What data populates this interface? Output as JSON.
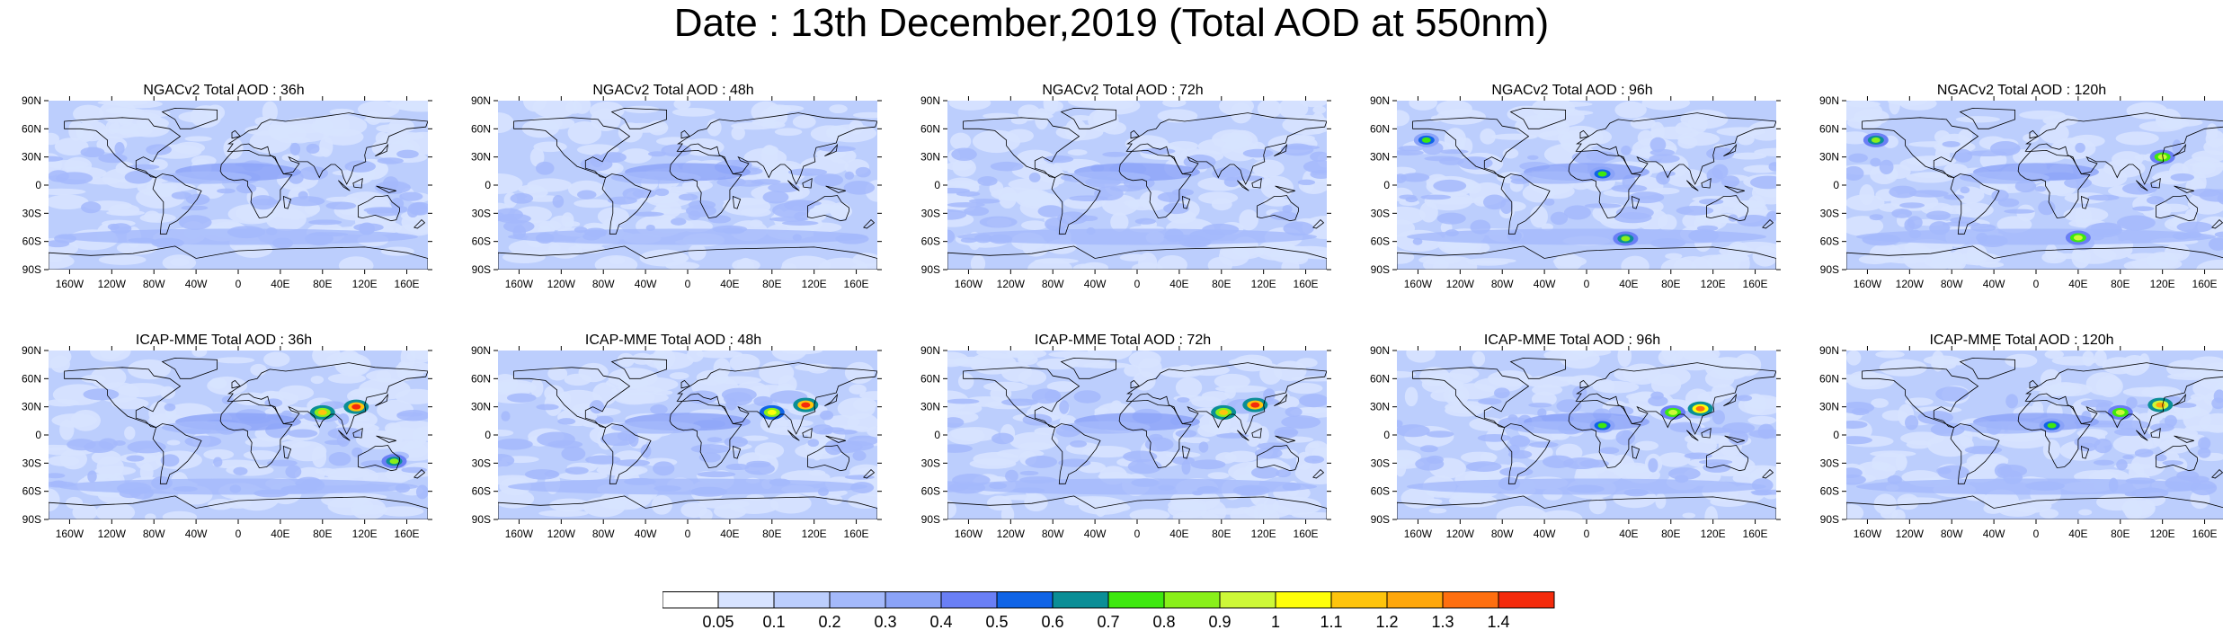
{
  "title": "Date : 13th December,2019 (Total AOD at 550nm)",
  "lat_ticks": [
    "90N",
    "60N",
    "30N",
    "0",
    "30S",
    "60S",
    "90S"
  ],
  "lon_ticks": [
    "160W",
    "120W",
    "80W",
    "40W",
    "0",
    "40E",
    "80E",
    "120E",
    "160E"
  ],
  "panels": [
    {
      "title": "NGACv2 Total AOD : 36h",
      "model": "NGACv2",
      "lead": "36h",
      "hotspots": []
    },
    {
      "title": "NGACv2 Total AOD : 48h",
      "model": "NGACv2",
      "lead": "48h",
      "hotspots": []
    },
    {
      "title": "NGACv2 Total AOD : 72h",
      "model": "NGACv2",
      "lead": "72h",
      "hotspots": []
    },
    {
      "title": "NGACv2 Total AOD : 96h",
      "model": "NGACv2",
      "lead": "96h",
      "hotspots": [
        {
          "lon": 37,
          "lat": -57,
          "aod": 0.8
        },
        {
          "lon": -152,
          "lat": 48,
          "aod": 0.7
        },
        {
          "lon": 15,
          "lat": 12,
          "aod": 0.7
        }
      ]
    },
    {
      "title": "NGACv2 Total AOD : 120h",
      "model": "NGACv2",
      "lead": "120h",
      "hotspots": [
        {
          "lon": 40,
          "lat": -56,
          "aod": 0.9
        },
        {
          "lon": -152,
          "lat": 48,
          "aod": 0.8
        },
        {
          "lon": 120,
          "lat": 30,
          "aod": 0.9
        }
      ]
    },
    {
      "title": "ICAP-MME Total AOD : 36h",
      "model": "ICAP-MME",
      "lead": "36h",
      "hotspots": [
        {
          "lon": 112,
          "lat": 30,
          "aod": 1.4
        },
        {
          "lon": 80,
          "lat": 24,
          "aod": 1.1
        },
        {
          "lon": 148,
          "lat": -28,
          "aod": 0.8
        }
      ]
    },
    {
      "title": "ICAP-MME Total AOD : 48h",
      "model": "ICAP-MME",
      "lead": "48h",
      "hotspots": [
        {
          "lon": 112,
          "lat": 32,
          "aod": 1.4
        },
        {
          "lon": 80,
          "lat": 24,
          "aod": 1.0
        }
      ]
    },
    {
      "title": "ICAP-MME Total AOD : 72h",
      "model": "ICAP-MME",
      "lead": "72h",
      "hotspots": [
        {
          "lon": 112,
          "lat": 32,
          "aod": 1.4
        },
        {
          "lon": 82,
          "lat": 24,
          "aod": 1.1
        }
      ]
    },
    {
      "title": "ICAP-MME Total AOD : 96h",
      "model": "ICAP-MME",
      "lead": "96h",
      "hotspots": [
        {
          "lon": 108,
          "lat": 28,
          "aod": 1.3
        },
        {
          "lon": 82,
          "lat": 24,
          "aod": 0.9
        },
        {
          "lon": 15,
          "lat": 10,
          "aod": 0.7
        }
      ]
    },
    {
      "title": "ICAP-MME Total AOD : 120h",
      "model": "ICAP-MME",
      "lead": "120h",
      "hotspots": [
        {
          "lon": 118,
          "lat": 32,
          "aod": 1.2
        },
        {
          "lon": 80,
          "lat": 24,
          "aod": 0.9
        },
        {
          "lon": 15,
          "lat": 10,
          "aod": 0.7
        }
      ]
    }
  ],
  "colorbar": {
    "labels": [
      "0.05",
      "0.1",
      "0.2",
      "0.3",
      "0.4",
      "0.5",
      "0.6",
      "0.7",
      "0.8",
      "0.9",
      "1",
      "1.1",
      "1.2",
      "1.3",
      "1.4"
    ],
    "colors": [
      "#ffffff",
      "#d7e3ff",
      "#bccefd",
      "#a4b9fb",
      "#8ba3f8",
      "#6a7ff5",
      "#1064e6",
      "#0b8e96",
      "#3ee80f",
      "#89f01a",
      "#cdf838",
      "#fefe0a",
      "#fec40d",
      "#fea70c",
      "#fe6f10",
      "#f42b0c"
    ]
  }
}
